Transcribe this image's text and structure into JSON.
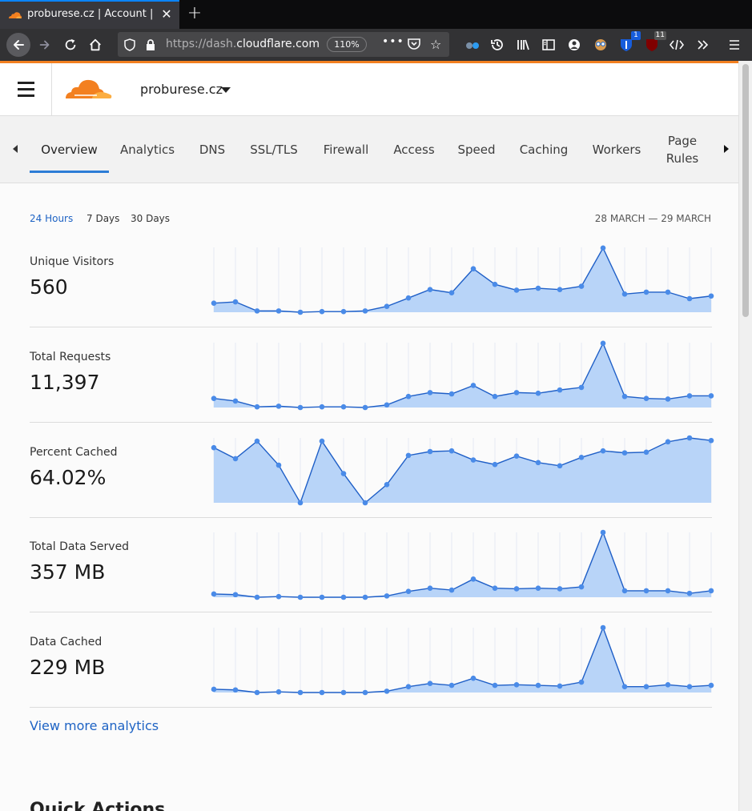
{
  "browser": {
    "tab_title": "proburese.cz | Account | Cloudflare",
    "url_prefix": "https://dash.",
    "url_domain": "cloudflare.com",
    "url_rest": "",
    "zoom": "110%",
    "badge_bitwarden": "1",
    "badge_ublock": "11"
  },
  "header": {
    "zone_name": "proburese.cz"
  },
  "nav": {
    "items": [
      "Overview",
      "Analytics",
      "DNS",
      "SSL/TLS",
      "Firewall",
      "Access",
      "Speed",
      "Caching",
      "Workers",
      "Page Rules"
    ],
    "active": "Overview"
  },
  "time_ranges": [
    "24 Hours",
    "7 Days",
    "30 Days"
  ],
  "active_range": "24 Hours",
  "date_range": "28 MARCH — 29 MARCH",
  "metrics": [
    {
      "label": "Unique Visitors",
      "value": "560"
    },
    {
      "label": "Total Requests",
      "value": "11,397"
    },
    {
      "label": "Percent Cached",
      "value": "64.02%"
    },
    {
      "label": "Total Data Served",
      "value": "357 MB"
    },
    {
      "label": "Data Cached",
      "value": "229 MB"
    }
  ],
  "view_more": "View more analytics",
  "quick_actions": "Quick Actions",
  "colors": {
    "accent": "#f38020",
    "link": "#1e63c4",
    "line": "#1f5fc7",
    "point": "#4a8be8",
    "fill": "#b8d4f8"
  },
  "chart_data": [
    {
      "type": "area",
      "title": "Unique Visitors",
      "x_count": 24,
      "values": [
        14,
        16,
        2,
        2,
        0,
        1,
        1,
        2,
        9,
        22,
        35,
        30,
        67,
        43,
        34,
        37,
        35,
        40,
        99,
        28,
        31,
        31,
        21,
        25
      ],
      "ylim": [
        0,
        100
      ]
    },
    {
      "type": "area",
      "title": "Total Requests",
      "x_count": 24,
      "values": [
        14,
        10,
        1,
        2,
        0,
        1,
        1,
        0,
        4,
        17,
        23,
        21,
        34,
        17,
        23,
        22,
        27,
        31,
        99,
        17,
        14,
        13,
        18,
        18
      ],
      "ylim": [
        0,
        100
      ]
    },
    {
      "type": "area",
      "title": "Percent Cached",
      "x_count": 24,
      "values": [
        85,
        68,
        95,
        58,
        0,
        95,
        45,
        0,
        28,
        73,
        79,
        80,
        66,
        59,
        72,
        62,
        57,
        70,
        80,
        77,
        78,
        94,
        100,
        96
      ],
      "ylim": [
        0,
        100
      ]
    },
    {
      "type": "area",
      "title": "Total Data Served",
      "x_count": 24,
      "values": [
        5,
        4,
        0,
        1,
        0,
        0,
        0,
        0,
        2,
        9,
        14,
        11,
        28,
        14,
        13,
        14,
        13,
        16,
        100,
        10,
        10,
        10,
        6,
        10
      ],
      "ylim": [
        0,
        100
      ]
    },
    {
      "type": "area",
      "title": "Data Cached",
      "x_count": 24,
      "values": [
        5,
        4,
        0,
        1,
        0,
        0,
        0,
        0,
        2,
        9,
        14,
        11,
        22,
        11,
        12,
        11,
        10,
        16,
        100,
        9,
        9,
        12,
        9,
        11
      ],
      "ylim": [
        0,
        100
      ]
    }
  ]
}
